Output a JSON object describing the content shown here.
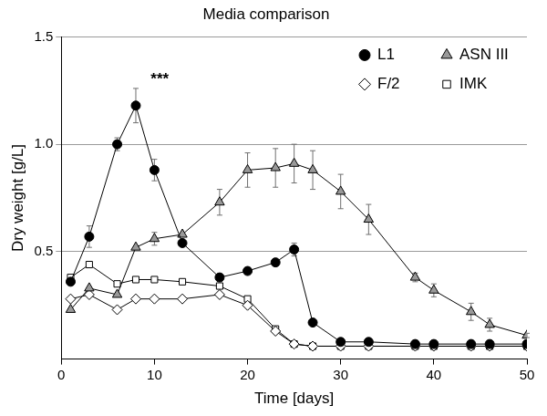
{
  "chart_data": {
    "type": "line",
    "title": "Media comparison",
    "x_label": "Time [days]",
    "y_label": "Dry weight [g/L]",
    "x": [
      1,
      3,
      6,
      8,
      10,
      13,
      17,
      20,
      23,
      25,
      27,
      30,
      33,
      38,
      40,
      44,
      46,
      50
    ],
    "series": [
      {
        "name": "L1",
        "color": "#000000",
        "marker": "circle",
        "line_style": "solid",
        "values": [
          0.36,
          0.57,
          1.0,
          1.18,
          0.88,
          0.54,
          0.38,
          0.41,
          0.45,
          0.51,
          0.17,
          0.08,
          0.08,
          0.07,
          0.07,
          0.07,
          0.07,
          0.07
        ],
        "errors": [
          null,
          0.05,
          0.03,
          0.08,
          0.05,
          null,
          null,
          null,
          null,
          0.03,
          null,
          null,
          null,
          null,
          null,
          null,
          null,
          null
        ]
      },
      {
        "name": "ASN III",
        "color": "#999999",
        "marker": "triangle",
        "line_style": "solid",
        "values": [
          0.23,
          0.33,
          0.3,
          0.52,
          0.56,
          0.58,
          0.73,
          0.88,
          0.89,
          0.91,
          0.88,
          0.78,
          0.65,
          0.38,
          0.32,
          0.22,
          0.16,
          0.11
        ],
        "errors": [
          null,
          null,
          null,
          null,
          0.03,
          null,
          0.06,
          0.08,
          0.09,
          0.09,
          0.09,
          0.08,
          0.07,
          0.02,
          0.03,
          0.04,
          0.03,
          0.01
        ]
      },
      {
        "name": "F/2",
        "color": "#ffffff",
        "marker": "diamond",
        "line_style": "solid",
        "values": [
          0.28,
          0.3,
          0.23,
          0.28,
          0.28,
          0.28,
          0.3,
          0.25,
          0.13,
          0.07,
          0.06,
          0.06,
          0.06,
          0.06,
          0.06,
          0.06,
          0.06,
          0.06
        ]
      },
      {
        "name": "IMK",
        "color": "#ffffff",
        "marker": "square",
        "line_style": "solid",
        "values": [
          0.38,
          0.44,
          0.35,
          0.37,
          0.37,
          0.36,
          0.34,
          0.28,
          0.14,
          0.07,
          0.06,
          0.06,
          0.06,
          0.06,
          0.06,
          0.06,
          0.06,
          0.06
        ]
      }
    ],
    "annotations": [
      {
        "text": "***",
        "x": 9.6,
        "y": 1.3
      }
    ],
    "xlim": [
      0,
      50
    ],
    "xticks": [
      0,
      10,
      20,
      30,
      40,
      50
    ],
    "ylim": [
      0,
      1.5
    ],
    "yticks": [
      {
        "value": 0.5,
        "label": "0.5"
      },
      {
        "value": 1,
        "label": "1.0"
      },
      {
        "value": 1.5,
        "label": "1.5"
      }
    ],
    "grid": "y",
    "legend": "top right"
  }
}
